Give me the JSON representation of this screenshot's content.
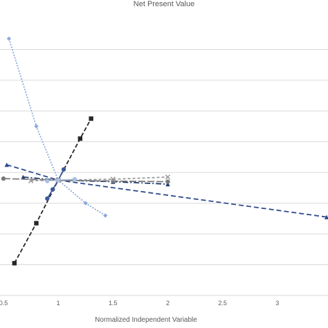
{
  "chart_data": {
    "type": "line",
    "title": "Net Present Value",
    "xlabel": "Normalized Independent Variable",
    "ylabel": "",
    "xlim": [
      0.5,
      3.45
    ],
    "ylim": [
      0,
      9
    ],
    "x_tick_labels": [
      "0.5",
      "1",
      "1.5",
      "2",
      "2.5",
      "3"
    ],
    "x_tick_values": [
      0.5,
      1,
      1.5,
      2,
      2.5,
      3
    ],
    "y_gridlines": [
      1,
      2,
      3,
      4,
      5,
      6,
      7,
      8
    ],
    "grid": true,
    "legend": "none",
    "series": [
      {
        "color": "#2e4a8c",
        "dash": "7,4",
        "marker": "triangle",
        "points": [
          [
            0.53,
            4.25
          ],
          [
            1.0,
            3.75
          ],
          [
            3.45,
            2.55
          ]
        ]
      },
      {
        "color": "#8eaadb",
        "dash": "2,2",
        "marker": "diamond",
        "points": [
          [
            0.55,
            8.35
          ],
          [
            0.8,
            5.5
          ],
          [
            1.0,
            3.75
          ],
          [
            1.25,
            3.0
          ],
          [
            1.43,
            2.6
          ]
        ]
      },
      {
        "color": "#262626",
        "dash": "6,3",
        "marker": "square",
        "points": [
          [
            0.6,
            1.05
          ],
          [
            0.8,
            2.35
          ],
          [
            1.0,
            3.75
          ],
          [
            1.2,
            5.1
          ],
          [
            1.3,
            5.75
          ]
        ]
      },
      {
        "color": "#3c5a9a",
        "dash": "none",
        "marker": "circle",
        "points": [
          [
            0.9,
            3.15
          ],
          [
            0.95,
            3.45
          ],
          [
            1.0,
            3.75
          ],
          [
            1.05,
            4.1
          ]
        ]
      },
      {
        "color": "#1f3a6e",
        "dash": "8,3,2,3",
        "marker": "triangle",
        "points": [
          [
            0.68,
            3.85
          ],
          [
            1.0,
            3.75
          ],
          [
            1.5,
            3.7
          ],
          [
            2.0,
            3.62
          ]
        ]
      },
      {
        "color": "#7a7a7a",
        "dash": "10,3",
        "marker": "circle",
        "points": [
          [
            0.5,
            3.8
          ],
          [
            1.0,
            3.75
          ],
          [
            1.5,
            3.72
          ],
          [
            2.0,
            3.7
          ]
        ]
      },
      {
        "color": "#9a9a9a",
        "dash": "4,3",
        "marker": "x",
        "points": [
          [
            0.75,
            3.73
          ],
          [
            1.0,
            3.75
          ],
          [
            1.5,
            3.78
          ],
          [
            2.0,
            3.85
          ]
        ]
      },
      {
        "color": "#aac0e6",
        "dash": "2,3",
        "marker": "circle",
        "points": [
          [
            0.9,
            3.72
          ],
          [
            1.0,
            3.75
          ],
          [
            1.15,
            3.78
          ]
        ]
      }
    ]
  }
}
